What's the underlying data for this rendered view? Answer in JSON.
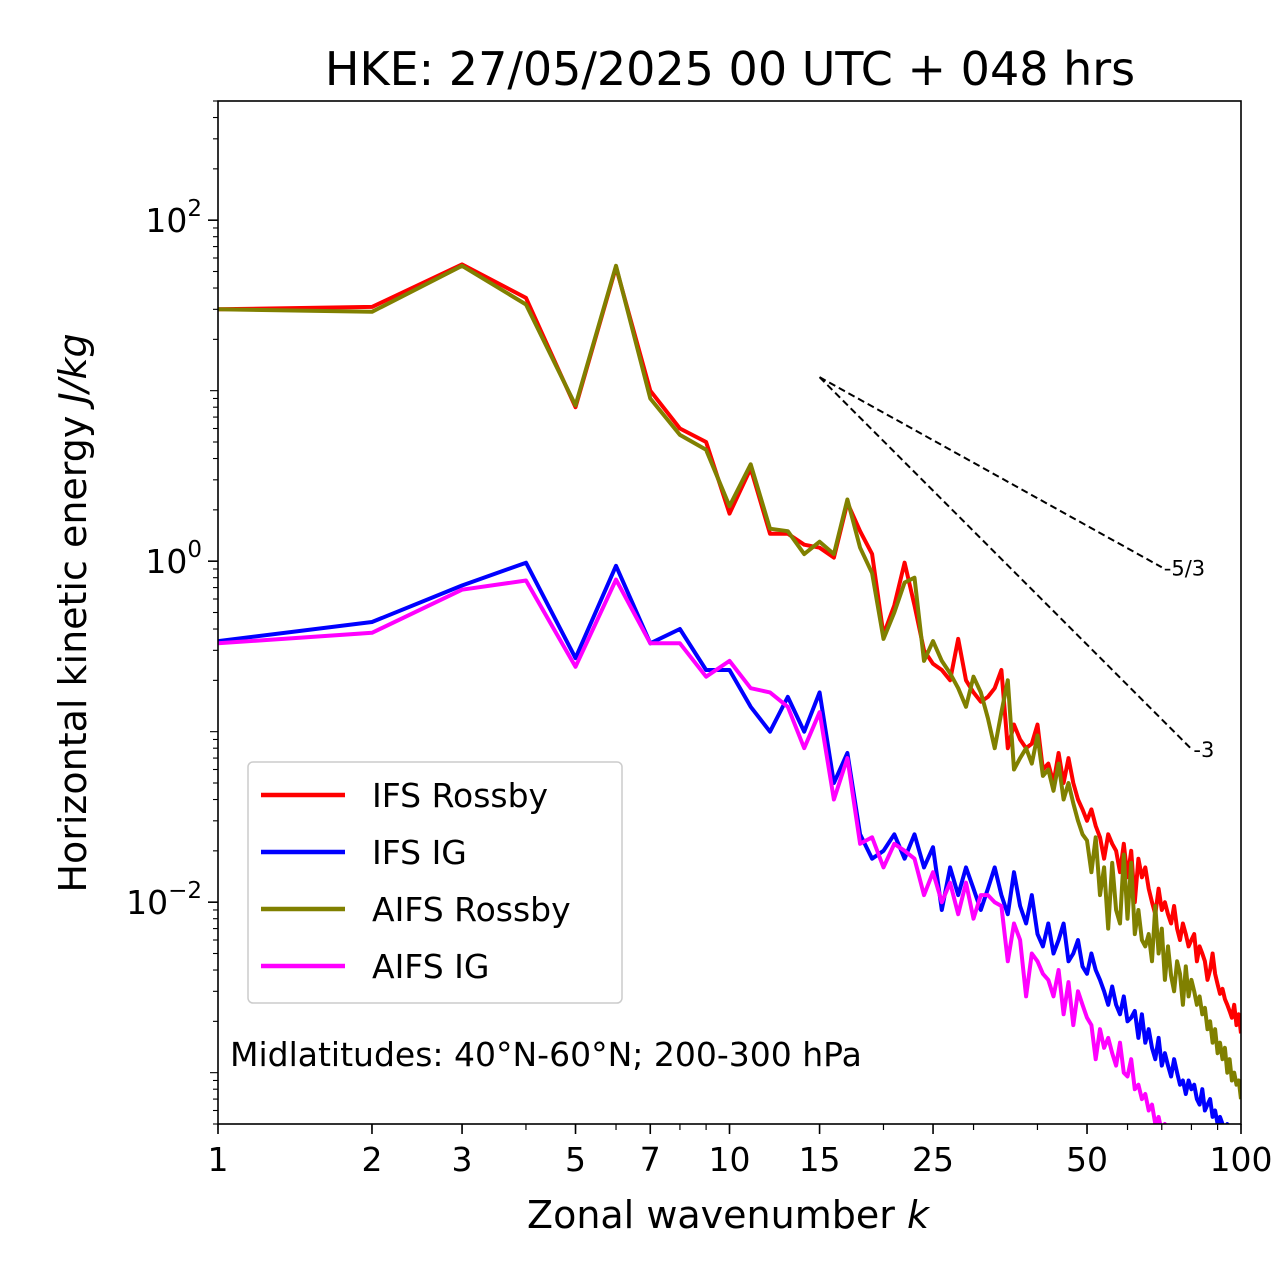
{
  "chart_data": {
    "type": "line",
    "title": "HKE: 27/05/2025 00 UTC + 048 hrs",
    "xlabel": "Zonal wavenumber",
    "xlabel_symbol": "k",
    "ylabel": "Horizontal kinetic energy",
    "ylabel_unit": "J/kg",
    "xscale": "log",
    "yscale": "log",
    "xlim": [
      1,
      100
    ],
    "ylim": [
      0.0005,
      500
    ],
    "x_ticks": [
      1,
      2,
      3,
      5,
      7,
      10,
      15,
      25,
      50,
      100
    ],
    "x_tick_labels": [
      "1",
      "2",
      "3",
      "5",
      "7",
      "10",
      "15",
      "25",
      "50",
      "100"
    ],
    "y_ticks": [
      {
        "value": 100,
        "base": "10",
        "exp": "2"
      },
      {
        "value": 1,
        "base": "10",
        "exp": "0"
      },
      {
        "value": 0.01,
        "base": "10",
        "exp": "−2"
      }
    ],
    "grid": false,
    "legend_position": "lower-left",
    "annotation": "Midlatitudes: 40°N-60°N; 200-300 hPa",
    "reference_slopes": [
      {
        "label": "-5/3",
        "slope": -1.6667,
        "x_start": 15,
        "x_end": 70,
        "y_start": 12
      },
      {
        "label": "-3",
        "slope": -3,
        "x_start": 15,
        "x_end": 80,
        "y_start": 12
      }
    ],
    "series": [
      {
        "name": "IFS Rossby",
        "color": "#ff0000",
        "x": [
          1,
          2,
          3,
          4,
          5,
          6,
          7,
          8,
          9,
          10,
          11,
          12,
          13,
          14,
          15,
          16,
          17,
          18,
          19,
          20,
          21,
          22,
          23,
          24,
          25,
          26,
          27,
          28,
          29,
          30,
          31,
          32,
          33,
          34,
          35,
          36,
          37,
          38,
          39,
          40,
          41,
          42,
          43,
          44,
          45,
          46,
          47,
          48,
          49,
          50,
          51,
          52,
          53,
          54,
          55,
          56,
          57,
          58,
          59,
          60,
          61,
          62,
          63,
          64,
          65,
          66,
          67,
          68,
          69,
          70,
          71,
          72,
          73,
          74,
          75,
          76,
          77,
          78,
          79,
          80,
          81,
          82,
          83,
          84,
          85,
          86,
          87,
          88,
          89,
          90,
          91,
          92,
          93,
          94,
          95,
          96,
          97,
          98,
          99,
          100
        ],
        "y": [
          30,
          31,
          55,
          35,
          8,
          53,
          10,
          6,
          5,
          1.9,
          3.5,
          1.45,
          1.45,
          1.25,
          1.2,
          1.05,
          2.2,
          1.5,
          1.1,
          0.37,
          0.55,
          0.98,
          0.55,
          0.3,
          0.25,
          0.23,
          0.2,
          0.35,
          0.2,
          0.17,
          0.15,
          0.16,
          0.18,
          0.23,
          0.08,
          0.11,
          0.09,
          0.08,
          0.085,
          0.11,
          0.06,
          0.065,
          0.05,
          0.075,
          0.05,
          0.07,
          0.05,
          0.04,
          0.035,
          0.03,
          0.035,
          0.028,
          0.024,
          0.018,
          0.025,
          0.022,
          0.02,
          0.015,
          0.022,
          0.014,
          0.02,
          0.01,
          0.018,
          0.014,
          0.016,
          0.012,
          0.01,
          0.0085,
          0.012,
          0.009,
          0.01,
          0.0085,
          0.0075,
          0.0095,
          0.007,
          0.006,
          0.0075,
          0.0065,
          0.0055,
          0.006,
          0.0065,
          0.0045,
          0.0055,
          0.005,
          0.0045,
          0.0035,
          0.004,
          0.005,
          0.0038,
          0.0033,
          0.0029,
          0.0031,
          0.0027,
          0.0025,
          0.0023,
          0.0021,
          0.0025,
          0.0019,
          0.0022,
          0.0017
        ]
      },
      {
        "name": "IFS IG",
        "color": "#0000ff",
        "x": [
          1,
          2,
          3,
          4,
          5,
          6,
          7,
          8,
          9,
          10,
          11,
          12,
          13,
          14,
          15,
          16,
          17,
          18,
          19,
          20,
          21,
          22,
          23,
          24,
          25,
          26,
          27,
          28,
          29,
          30,
          31,
          32,
          33,
          34,
          35,
          36,
          37,
          38,
          39,
          40,
          41,
          42,
          43,
          44,
          45,
          46,
          47,
          48,
          49,
          50,
          51,
          52,
          53,
          54,
          55,
          56,
          57,
          58,
          59,
          60,
          61,
          62,
          63,
          64,
          65,
          66,
          67,
          68,
          69,
          70,
          71,
          72,
          73,
          74,
          75,
          76,
          77,
          78,
          79,
          80,
          81,
          82,
          83,
          84,
          85,
          86,
          87,
          88,
          89,
          90,
          91,
          92,
          93,
          94,
          95,
          96,
          97,
          98,
          99,
          100
        ],
        "y": [
          0.34,
          0.44,
          0.72,
          0.98,
          0.27,
          0.94,
          0.33,
          0.4,
          0.23,
          0.23,
          0.14,
          0.1,
          0.16,
          0.1,
          0.17,
          0.05,
          0.075,
          0.025,
          0.018,
          0.02,
          0.025,
          0.018,
          0.025,
          0.016,
          0.021,
          0.009,
          0.016,
          0.011,
          0.016,
          0.012,
          0.009,
          0.012,
          0.016,
          0.011,
          0.0085,
          0.015,
          0.0095,
          0.0075,
          0.011,
          0.0065,
          0.0055,
          0.0075,
          0.005,
          0.006,
          0.0075,
          0.0045,
          0.005,
          0.006,
          0.0042,
          0.0038,
          0.005,
          0.004,
          0.0035,
          0.003,
          0.0025,
          0.0032,
          0.0025,
          0.0022,
          0.0028,
          0.002,
          0.0021,
          0.0023,
          0.0016,
          0.0022,
          0.0015,
          0.0018,
          0.0014,
          0.0012,
          0.0016,
          0.0011,
          0.0013,
          0.0011,
          0.00095,
          0.0012,
          0.001,
          0.00085,
          0.0009,
          0.00075,
          0.0009,
          0.0008,
          0.00085,
          0.0007,
          0.00065,
          0.0008,
          0.0006,
          0.00065,
          0.0007,
          0.00055,
          0.0006,
          0.0005,
          0.00055,
          0.0005,
          0.00045,
          0.0005,
          0.00042,
          0.00045,
          0.0004,
          0.00038,
          0.0004,
          0.00035
        ]
      },
      {
        "name": "AIFS Rossby",
        "color": "#808000",
        "x": [
          1,
          2,
          3,
          4,
          5,
          6,
          7,
          8,
          9,
          10,
          11,
          12,
          13,
          14,
          15,
          16,
          17,
          18,
          19,
          20,
          21,
          22,
          23,
          24,
          25,
          26,
          27,
          28,
          29,
          30,
          31,
          32,
          33,
          34,
          35,
          36,
          37,
          38,
          39,
          40,
          41,
          42,
          43,
          44,
          45,
          46,
          47,
          48,
          49,
          50,
          51,
          52,
          53,
          54,
          55,
          56,
          57,
          58,
          59,
          60,
          61,
          62,
          63,
          64,
          65,
          66,
          67,
          68,
          69,
          70,
          71,
          72,
          73,
          74,
          75,
          76,
          77,
          78,
          79,
          80,
          81,
          82,
          83,
          84,
          85,
          86,
          87,
          88,
          89,
          90,
          91,
          92,
          93,
          94,
          95,
          96,
          97,
          98,
          99,
          100
        ],
        "y": [
          30,
          29,
          54,
          32,
          8.2,
          54,
          9,
          5.5,
          4.5,
          2.1,
          3.7,
          1.55,
          1.5,
          1.1,
          1.3,
          1.1,
          2.3,
          1.2,
          0.85,
          0.35,
          0.5,
          0.75,
          0.8,
          0.26,
          0.34,
          0.26,
          0.22,
          0.18,
          0.14,
          0.21,
          0.17,
          0.12,
          0.08,
          0.13,
          0.2,
          0.06,
          0.07,
          0.08,
          0.065,
          0.095,
          0.055,
          0.06,
          0.045,
          0.065,
          0.04,
          0.05,
          0.038,
          0.03,
          0.025,
          0.023,
          0.015,
          0.024,
          0.011,
          0.016,
          0.007,
          0.017,
          0.009,
          0.0075,
          0.019,
          0.008,
          0.017,
          0.0065,
          0.009,
          0.006,
          0.0055,
          0.0065,
          0.0045,
          0.0095,
          0.005,
          0.007,
          0.0035,
          0.0055,
          0.0037,
          0.003,
          0.0045,
          0.0038,
          0.0025,
          0.0042,
          0.0028,
          0.0035,
          0.003,
          0.0025,
          0.0028,
          0.0022,
          0.0024,
          0.0018,
          0.002,
          0.0015,
          0.0018,
          0.0013,
          0.0015,
          0.0012,
          0.0014,
          0.001,
          0.0012,
          0.0009,
          0.001,
          0.00085,
          0.0009,
          0.0007
        ]
      },
      {
        "name": "AIFS IG",
        "color": "#ff00ff",
        "x": [
          1,
          2,
          3,
          4,
          5,
          6,
          7,
          8,
          9,
          10,
          11,
          12,
          13,
          14,
          15,
          16,
          17,
          18,
          19,
          20,
          21,
          22,
          23,
          24,
          25,
          26,
          27,
          28,
          29,
          30,
          31,
          32,
          33,
          34,
          35,
          36,
          37,
          38,
          39,
          40,
          41,
          42,
          43,
          44,
          45,
          46,
          47,
          48,
          49,
          50,
          51,
          52,
          53,
          54,
          55,
          56,
          57,
          58,
          59,
          60,
          61,
          62,
          63,
          64,
          65,
          66,
          67,
          68,
          69,
          70,
          71,
          72,
          73,
          74,
          75
        ],
        "y": [
          0.33,
          0.38,
          0.68,
          0.77,
          0.24,
          0.78,
          0.33,
          0.33,
          0.21,
          0.26,
          0.18,
          0.17,
          0.14,
          0.08,
          0.13,
          0.04,
          0.07,
          0.022,
          0.024,
          0.016,
          0.022,
          0.02,
          0.018,
          0.011,
          0.015,
          0.01,
          0.013,
          0.0085,
          0.013,
          0.008,
          0.011,
          0.011,
          0.01,
          0.0095,
          0.0045,
          0.0075,
          0.006,
          0.0028,
          0.005,
          0.0045,
          0.0038,
          0.0035,
          0.0028,
          0.004,
          0.0022,
          0.0034,
          0.0019,
          0.003,
          0.0025,
          0.0021,
          0.0019,
          0.0012,
          0.0018,
          0.0014,
          0.0016,
          0.0013,
          0.0011,
          0.0015,
          0.001,
          0.00095,
          0.0012,
          0.0008,
          0.00085,
          0.0007,
          0.00075,
          0.0006,
          0.00065,
          0.0005,
          0.00055,
          0.00045,
          0.0005,
          0.0004,
          0.00042,
          0.00036,
          0.00038
        ]
      }
    ]
  }
}
